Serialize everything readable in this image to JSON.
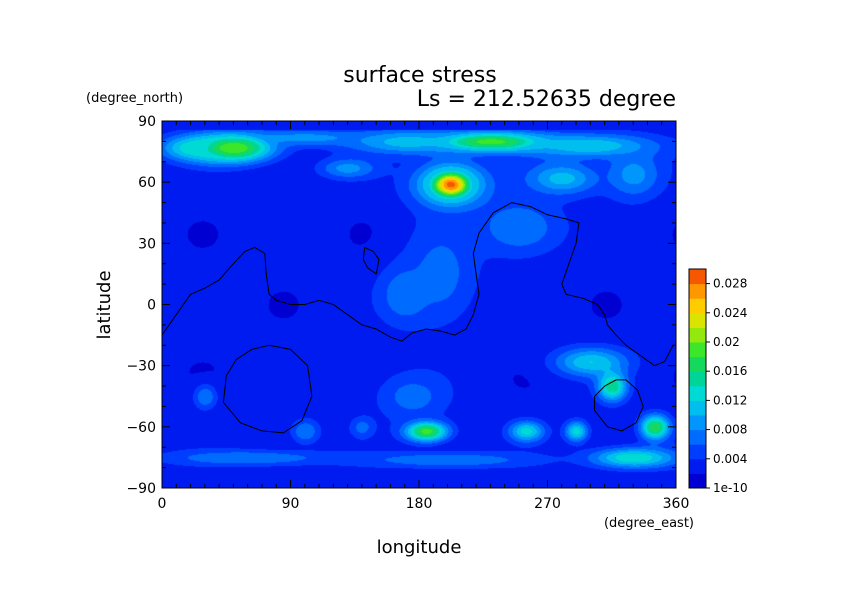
{
  "chart_data": {
    "type": "heatmap",
    "title": "surface stress",
    "subtitle": "Ls = 212.52635 degree",
    "xlabel": "longitude",
    "ylabel": "latitude",
    "x_units": "(degree_east)",
    "y_units": "(degree_north)",
    "xlim": [
      0,
      360
    ],
    "ylim": [
      -90,
      90
    ],
    "x_ticks": [
      "0",
      "90",
      "180",
      "270",
      "360"
    ],
    "y_ticks": [
      "90",
      "60",
      "30",
      "0",
      "−30",
      "−60",
      "−90"
    ],
    "colorbar": {
      "min": 0,
      "max": 0.03,
      "tick_labels": [
        "1e-10",
        "0.004",
        "0.008",
        "0.012",
        "0.016",
        "0.02",
        "0.024",
        "0.028"
      ],
      "tick_values": [
        0,
        0.004,
        0.008,
        0.012,
        0.016,
        0.02,
        0.024,
        0.028
      ]
    },
    "background_value": 0.0025,
    "features": [
      {
        "lon": 50,
        "lat": 77,
        "rlon": 28,
        "rlat": 7,
        "value": 0.02
      },
      {
        "lon": 25,
        "lat": 77,
        "rlon": 25,
        "rlat": 6,
        "value": 0.014
      },
      {
        "lon": 230,
        "lat": 80,
        "rlon": 40,
        "rlat": 5,
        "value": 0.019
      },
      {
        "lon": 170,
        "lat": 80,
        "rlon": 40,
        "rlat": 6,
        "value": 0.011
      },
      {
        "lon": 300,
        "lat": 78,
        "rlon": 45,
        "rlat": 6,
        "value": 0.012
      },
      {
        "lon": 100,
        "lat": 82,
        "rlon": 45,
        "rlat": 4,
        "value": 0.009
      },
      {
        "lon": 202,
        "lat": 59,
        "rlon": 15,
        "rlat": 7,
        "value": 0.029
      },
      {
        "lon": 202,
        "lat": 59,
        "rlon": 28,
        "rlat": 12,
        "value": 0.012
      },
      {
        "lon": 130,
        "lat": 67,
        "rlon": 20,
        "rlat": 5,
        "value": 0.009
      },
      {
        "lon": 280,
        "lat": 62,
        "rlon": 25,
        "rlat": 8,
        "value": 0.011
      },
      {
        "lon": 330,
        "lat": 64,
        "rlon": 20,
        "rlat": 12,
        "value": 0.009
      },
      {
        "lon": 250,
        "lat": 38,
        "rlon": 30,
        "rlat": 14,
        "value": 0.008
      },
      {
        "lon": 170,
        "lat": 5,
        "rlon": 18,
        "rlat": 14,
        "value": 0.008
      },
      {
        "lon": 195,
        "lat": 15,
        "rlon": 25,
        "rlat": 25,
        "value": 0.007
      },
      {
        "lon": 30,
        "lat": -45,
        "rlon": 8,
        "rlat": 6,
        "value": 0.008
      },
      {
        "lon": 185,
        "lat": -62,
        "rlon": 15,
        "rlat": 5,
        "value": 0.019
      },
      {
        "lon": 175,
        "lat": -45,
        "rlon": 25,
        "rlat": 12,
        "value": 0.007
      },
      {
        "lon": 300,
        "lat": -28,
        "rlon": 25,
        "rlat": 7,
        "value": 0.012
      },
      {
        "lon": 315,
        "lat": -40,
        "rlon": 10,
        "rlat": 7,
        "value": 0.016
      },
      {
        "lon": 345,
        "lat": -60,
        "rlon": 10,
        "rlat": 6,
        "value": 0.018
      },
      {
        "lon": 255,
        "lat": -62,
        "rlon": 12,
        "rlat": 5,
        "value": 0.013
      },
      {
        "lon": 290,
        "lat": -62,
        "rlon": 8,
        "rlat": 5,
        "value": 0.013
      },
      {
        "lon": 330,
        "lat": -75,
        "rlon": 30,
        "rlat": 5,
        "value": 0.014
      },
      {
        "lon": 60,
        "lat": -75,
        "rlon": 60,
        "rlat": 4,
        "value": 0.008
      },
      {
        "lon": 200,
        "lat": -76,
        "rlon": 60,
        "rlat": 4,
        "value": 0.008
      },
      {
        "lon": 100,
        "lat": -62,
        "rlon": 10,
        "rlat": 6,
        "value": 0.008
      },
      {
        "lon": 140,
        "lat": -60,
        "rlon": 8,
        "rlat": 5,
        "value": 0.007
      },
      {
        "lon": 80,
        "lat": 25,
        "rlon": 30,
        "rlat": 20,
        "value": 0.0008
      },
      {
        "lon": 120,
        "lat": -10,
        "rlon": 25,
        "rlat": 15,
        "value": 0.0005
      },
      {
        "lon": 30,
        "lat": 0,
        "rlon": 30,
        "rlat": 20,
        "value": 0.001
      },
      {
        "lon": 330,
        "lat": 0,
        "rlon": 25,
        "rlat": 15,
        "value": 0.001
      }
    ],
    "contours": [
      [
        [
          0,
          -15
        ],
        [
          10,
          -5
        ],
        [
          20,
          5
        ],
        [
          30,
          8
        ],
        [
          40,
          12
        ],
        [
          50,
          20
        ],
        [
          58,
          26
        ],
        [
          65,
          28
        ],
        [
          72,
          25
        ],
        [
          73,
          15
        ],
        [
          75,
          5
        ],
        [
          80,
          2
        ],
        [
          90,
          0
        ],
        [
          100,
          0
        ],
        [
          110,
          2
        ],
        [
          120,
          0
        ],
        [
          130,
          -5
        ],
        [
          140,
          -10
        ],
        [
          150,
          -12
        ],
        [
          160,
          -16
        ],
        [
          168,
          -18
        ],
        [
          175,
          -14
        ],
        [
          185,
          -12
        ],
        [
          195,
          -13
        ],
        [
          205,
          -15
        ],
        [
          213,
          -12
        ],
        [
          218,
          -5
        ],
        [
          222,
          5
        ],
        [
          220,
          15
        ],
        [
          218,
          25
        ],
        [
          222,
          35
        ],
        [
          232,
          45
        ],
        [
          245,
          50
        ],
        [
          258,
          48
        ],
        [
          270,
          44
        ],
        [
          283,
          42
        ],
        [
          292,
          40
        ],
        [
          290,
          30
        ],
        [
          285,
          20
        ],
        [
          280,
          10
        ],
        [
          283,
          5
        ],
        [
          295,
          3
        ],
        [
          305,
          0
        ],
        [
          310,
          -5
        ],
        [
          312,
          -10
        ],
        [
          318,
          -15
        ],
        [
          325,
          -20
        ],
        [
          335,
          -25
        ],
        [
          345,
          -30
        ],
        [
          352,
          -28
        ],
        [
          358,
          -20
        ]
      ],
      [
        [
          142,
          28
        ],
        [
          148,
          26
        ],
        [
          152,
          22
        ],
        [
          150,
          15
        ],
        [
          144,
          18
        ],
        [
          141,
          22
        ],
        [
          142,
          28
        ]
      ],
      [
        [
          75,
          -20
        ],
        [
          90,
          -22
        ],
        [
          102,
          -30
        ],
        [
          105,
          -45
        ],
        [
          98,
          -57
        ],
        [
          85,
          -63
        ],
        [
          70,
          -62
        ],
        [
          55,
          -58
        ],
        [
          43,
          -48
        ],
        [
          45,
          -35
        ],
        [
          52,
          -27
        ],
        [
          63,
          -22
        ],
        [
          75,
          -20
        ]
      ],
      [
        [
          325,
          -37
        ],
        [
          333,
          -42
        ],
        [
          337,
          -50
        ],
        [
          332,
          -58
        ],
        [
          322,
          -62
        ],
        [
          312,
          -60
        ],
        [
          303,
          -52
        ],
        [
          303,
          -45
        ],
        [
          310,
          -40
        ],
        [
          318,
          -37
        ],
        [
          325,
          -37
        ]
      ]
    ]
  }
}
